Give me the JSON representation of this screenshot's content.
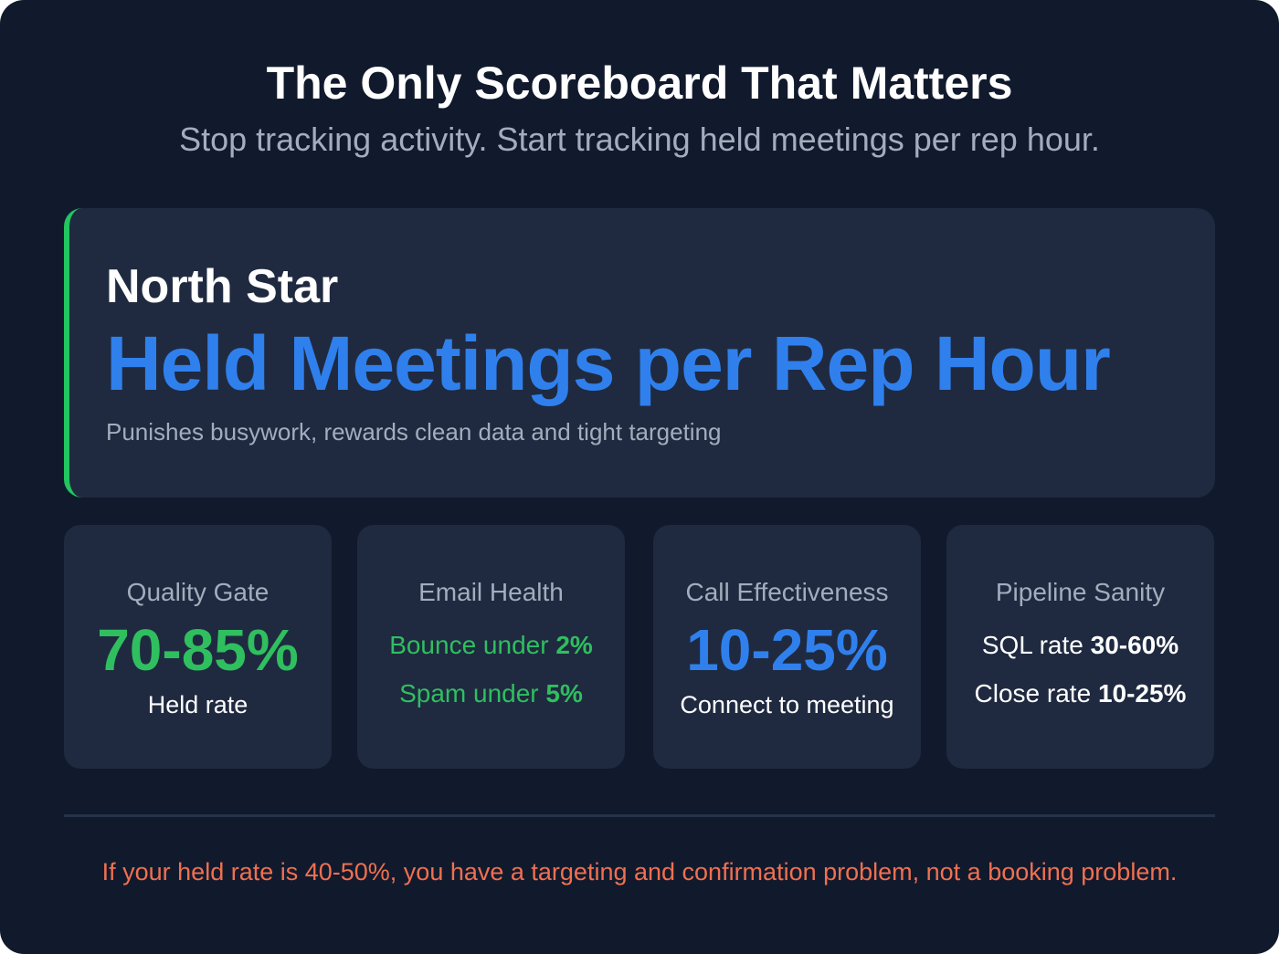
{
  "header": {
    "title": "The Only Scoreboard That Matters",
    "subtitle": "Stop tracking activity. Start tracking held meetings per rep hour."
  },
  "hero": {
    "label": "North Star",
    "metric": "Held Meetings per Rep Hour",
    "description": "Punishes busywork, rewards clean data and tight targeting",
    "accent": "#22c55e",
    "metric_color": "#2f80ed"
  },
  "cards": [
    {
      "heading": "Quality Gate",
      "value": "70-85%",
      "caption": "Held rate"
    },
    {
      "heading": "Email Health",
      "line1_text": "Bounce under ",
      "line1_value": "2%",
      "line2_text": "Spam under ",
      "line2_value": "5%"
    },
    {
      "heading": "Call Effectiveness",
      "value": "10-25%",
      "caption": "Connect to meeting"
    },
    {
      "heading": "Pipeline Sanity",
      "line1_text": "SQL rate ",
      "line1_value": "30-60%",
      "line2_text": "Close rate ",
      "line2_value": "10-25%"
    }
  ],
  "footer": {
    "text": "If your held rate is 40-50%, you have a targeting and confirmation problem, not a booking problem.",
    "color": "#f07050"
  }
}
